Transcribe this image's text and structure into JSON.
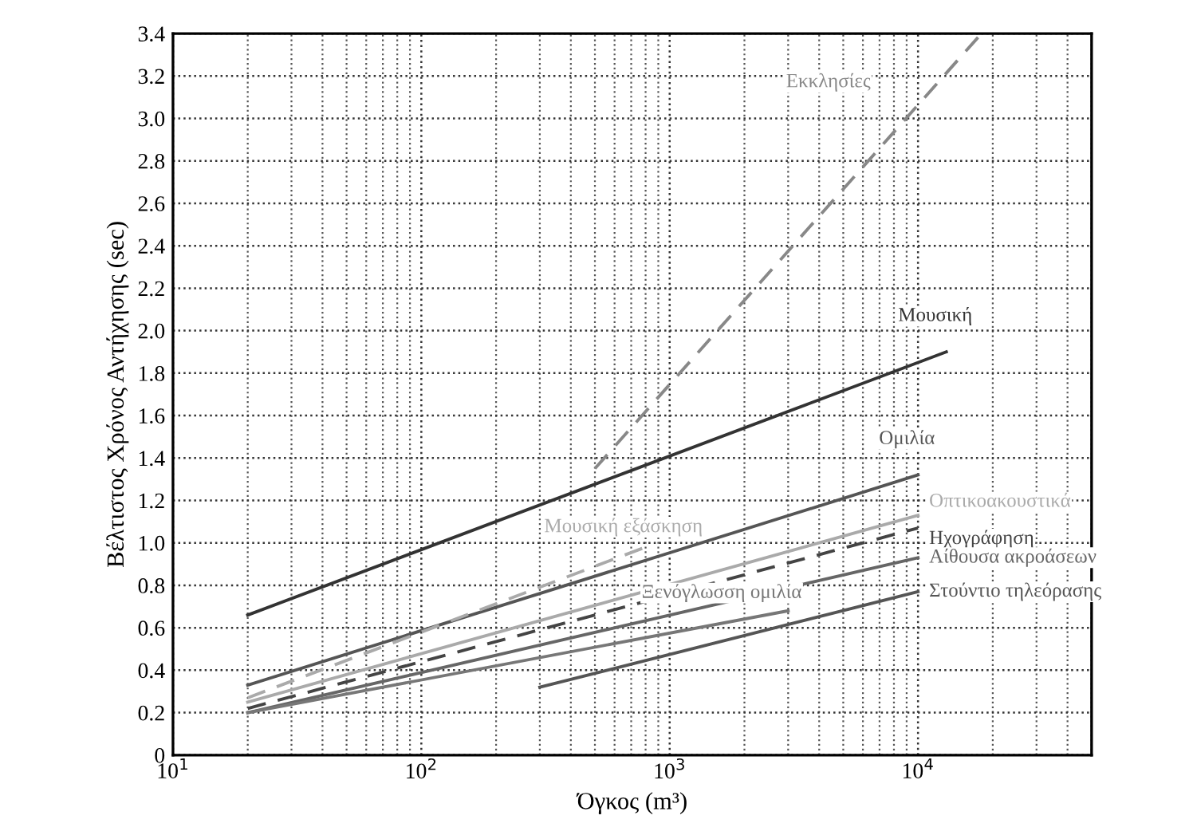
{
  "chart_data": {
    "type": "line",
    "xlabel": "Όγκος (m³)",
    "ylabel": "Βέλτιστος Χρόνος Αντήχησης (sec)",
    "log": "x",
    "grid": true,
    "marker": "none",
    "xlim": [
      10,
      50000
    ],
    "xticks": [
      {
        "value": 10,
        "label": "10$^{1}$"
      },
      {
        "value": 100,
        "label": "10$^{2}$"
      },
      {
        "value": 1000,
        "label": "10$^{3}$"
      },
      {
        "value": 10000,
        "label": "10$^{4}$"
      }
    ],
    "ylim": [
      0,
      3.4
    ],
    "yticks": [
      {
        "value": 0,
        "label": "0"
      },
      {
        "value": 0.2,
        "label": "0.2"
      },
      {
        "value": 0.4,
        "label": "0.4"
      },
      {
        "value": 0.6,
        "label": "0.6"
      },
      {
        "value": 0.8,
        "label": "0.8"
      },
      {
        "value": 1.0,
        "label": "1.0"
      },
      {
        "value": 1.2,
        "label": "1.2"
      },
      {
        "value": 1.4,
        "label": "1.4"
      },
      {
        "value": 1.6,
        "label": "1.6"
      },
      {
        "value": 1.8,
        "label": "1.8"
      },
      {
        "value": 2.0,
        "label": "2.0"
      },
      {
        "value": 2.2,
        "label": "2.2"
      },
      {
        "value": 2.4,
        "label": "2.4"
      },
      {
        "value": 2.6,
        "label": "2.6"
      },
      {
        "value": 2.8,
        "label": "2.8"
      },
      {
        "value": 3.0,
        "label": "3.0"
      },
      {
        "value": 3.2,
        "label": "3.2"
      },
      {
        "value": 3.4,
        "label": "3.4"
      }
    ],
    "series": [
      {
        "name": "Εκκλησίες",
        "color": "#888888",
        "line_style": "dashed",
        "x": [
          500,
          18000
        ],
        "values": [
          1.35,
          3.4
        ]
      },
      {
        "name": "Μουσική",
        "color": "#333333",
        "line_style": "solid",
        "x": [
          20,
          13000
        ],
        "values": [
          0.66,
          1.9
        ]
      },
      {
        "name": "Ομιλία",
        "color": "#555555",
        "line_style": "solid",
        "x": [
          20,
          10000
        ],
        "values": [
          0.33,
          1.32
        ]
      },
      {
        "name": "Μουσική εξάσκηση",
        "color": "#aaaaaa",
        "line_style": "dashed",
        "x": [
          20,
          800
        ],
        "values": [
          0.27,
          0.98
        ]
      },
      {
        "name": "Οπτικοακουστικά",
        "color": "#aaaaaa",
        "line_style": "solid",
        "x": [
          20,
          10000
        ],
        "values": [
          0.25,
          1.13
        ]
      },
      {
        "name": "Ηχογράφηση",
        "color": "#444444",
        "line_style": "dashed",
        "x": [
          20,
          10000
        ],
        "values": [
          0.22,
          1.07
        ]
      },
      {
        "name": "Αίθουσα ακροάσεων",
        "color": "#666666",
        "line_style": "solid",
        "x": [
          20,
          10000
        ],
        "values": [
          0.2,
          0.93
        ]
      },
      {
        "name": "Ξενόγλωσση ομιλία",
        "color": "#777777",
        "line_style": "solid",
        "x": [
          20,
          3000
        ],
        "values": [
          0.2,
          0.68
        ]
      },
      {
        "name": "Στούντιο τηλεόρασης",
        "color": "#555555",
        "line_style": "solid",
        "x": [
          300,
          10000
        ],
        "values": [
          0.32,
          0.77
        ]
      }
    ]
  }
}
